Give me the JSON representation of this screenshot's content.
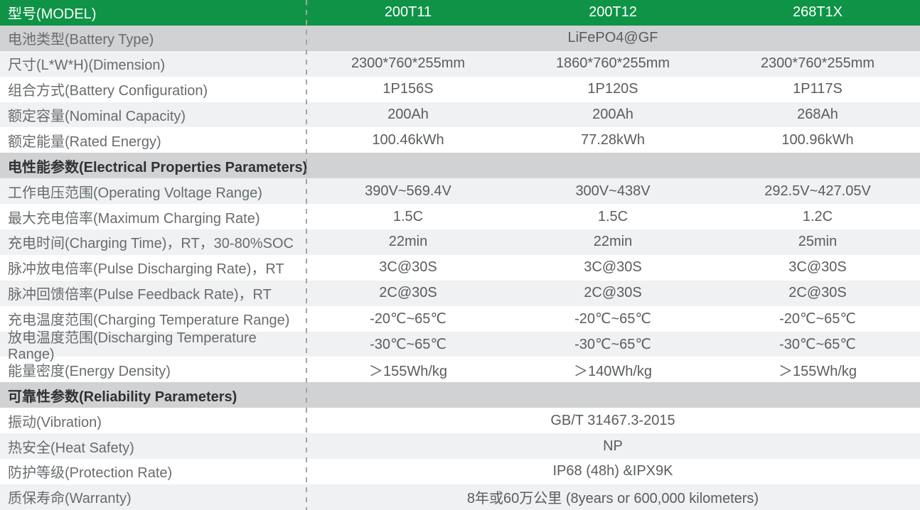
{
  "table": {
    "colors": {
      "header_green": "#0f9347",
      "section_gray": "#d0d2d3",
      "row_light_gray": "#eff1f2",
      "row_white": "#ffffff",
      "divider_gray": "#a3a6a7"
    },
    "header": {
      "label": "型号(MODEL)",
      "models": [
        "200T11",
        "200T12",
        "268T1X"
      ]
    },
    "rows": [
      {
        "label": "电池类型(Battery Type)",
        "value": "LiFePO4@GF"
      },
      {
        "label": "尺寸(L*W*H)(Dimension)",
        "values": [
          "2300*760*255mm",
          "1860*760*255mm",
          "2300*760*255mm"
        ]
      },
      {
        "label": "组合方式(Battery Configuration)",
        "values": [
          "1P156S",
          "1P120S",
          "1P117S"
        ]
      },
      {
        "label": "额定容量(Nominal Capacity)",
        "values": [
          "200Ah",
          "200Ah",
          "268Ah"
        ]
      },
      {
        "label": "额定能量(Rated Energy)",
        "values": [
          "100.46kWh",
          "77.28kWh",
          "100.96kWh"
        ]
      },
      {
        "label": "电性能参数(Electrical Properties Parameters)"
      },
      {
        "label": "工作电压范围(Operating Voltage Range)",
        "values": [
          "390V~569.4V",
          "300V~438V",
          "292.5V~427.05V"
        ]
      },
      {
        "label": "最大充电倍率(Maximum Charging Rate)",
        "values": [
          "1.5C",
          "1.5C",
          "1.2C"
        ]
      },
      {
        "label": "充电时间(Charging Time)，RT，30-80%SOC",
        "values": [
          "22min",
          "22min",
          "25min"
        ]
      },
      {
        "label": "脉冲放电倍率(Pulse Discharging Rate)，RT",
        "values": [
          "3C@30S",
          "3C@30S",
          "3C@30S"
        ]
      },
      {
        "label": "脉冲回馈倍率(Pulse Feedback Rate)，RT",
        "values": [
          "2C@30S",
          "2C@30S",
          "2C@30S"
        ]
      },
      {
        "label": "充电温度范围(Charging Temperature Range)",
        "values": [
          "-20℃~65℃",
          "-20℃~65℃",
          "-20℃~65℃"
        ]
      },
      {
        "label": "放电温度范围(Discharging Temperature Range)",
        "values": [
          "-30℃~65℃",
          "-30℃~65℃",
          "-30℃~65℃"
        ]
      },
      {
        "label": "能量密度(Energy Density)",
        "values": [
          "＞155Wh/kg",
          "＞140Wh/kg",
          "＞155Wh/kg"
        ]
      },
      {
        "label": "可靠性参数(Reliability Parameters)"
      },
      {
        "label": "振动(Vibration)",
        "value": "GB/T 31467.3-2015"
      },
      {
        "label": "热安全(Heat Safety)",
        "value": "NP"
      },
      {
        "label": "防护等级(Protection Rate)",
        "value": "IP68 (48h) &IPX9K"
      },
      {
        "label": "质保寿命(Warranty)",
        "value": "8年或60万公里 (8years or 600,000 kilometers)"
      }
    ]
  }
}
